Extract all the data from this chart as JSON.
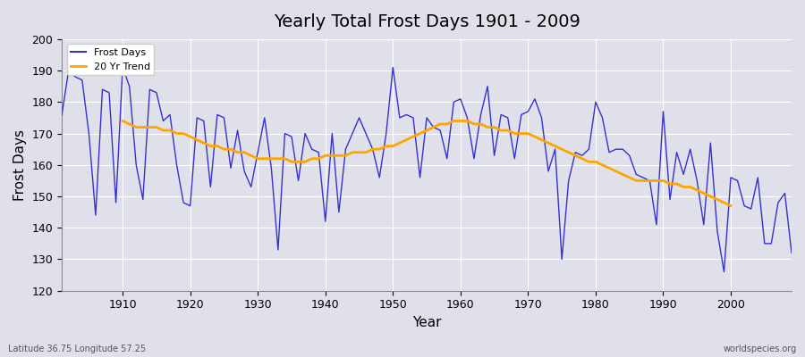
{
  "title": "Yearly Total Frost Days 1901 - 2009",
  "xlabel": "Year",
  "ylabel": "Frost Days",
  "bottom_left_label": "Latitude 36.75 Longitude 57.25",
  "bottom_right_label": "worldspecies.org",
  "xlim": [
    1901,
    2009
  ],
  "ylim": [
    120,
    200
  ],
  "frost_days_color": "#3333cc",
  "trend_color": "#ffa500",
  "background_color": "#e0e0ea",
  "grid_color": "#ffffff",
  "legend_labels": [
    "Frost Days",
    "20 Yr Trend"
  ],
  "years": [
    1901,
    1902,
    1903,
    1904,
    1905,
    1906,
    1907,
    1908,
    1909,
    1910,
    1911,
    1912,
    1913,
    1914,
    1915,
    1916,
    1917,
    1918,
    1919,
    1920,
    1921,
    1922,
    1923,
    1924,
    1925,
    1926,
    1927,
    1928,
    1929,
    1930,
    1931,
    1932,
    1933,
    1934,
    1935,
    1936,
    1937,
    1938,
    1939,
    1940,
    1941,
    1942,
    1943,
    1944,
    1945,
    1946,
    1947,
    1948,
    1949,
    1950,
    1951,
    1952,
    1953,
    1954,
    1955,
    1956,
    1957,
    1958,
    1959,
    1960,
    1961,
    1962,
    1963,
    1964,
    1965,
    1966,
    1967,
    1968,
    1969,
    1970,
    1971,
    1972,
    1973,
    1974,
    1975,
    1976,
    1977,
    1978,
    1979,
    1980,
    1981,
    1982,
    1983,
    1984,
    1985,
    1986,
    1987,
    1988,
    1989,
    1990,
    1991,
    1992,
    1993,
    1994,
    1995,
    1996,
    1997,
    1998,
    1999,
    2000,
    2001,
    2002,
    2003,
    2004,
    2005,
    2006,
    2007,
    2008,
    2009
  ],
  "frost_days": [
    176,
    190,
    188,
    187,
    170,
    144,
    184,
    183,
    148,
    191,
    185,
    160,
    149,
    184,
    183,
    174,
    176,
    160,
    148,
    147,
    175,
    174,
    153,
    176,
    175,
    159,
    171,
    158,
    153,
    164,
    175,
    159,
    133,
    170,
    169,
    155,
    170,
    165,
    164,
    142,
    170,
    145,
    165,
    170,
    175,
    170,
    165,
    156,
    170,
    191,
    175,
    176,
    175,
    156,
    175,
    172,
    171,
    162,
    180,
    181,
    175,
    162,
    176,
    185,
    163,
    176,
    175,
    162,
    176,
    177,
    181,
    175,
    158,
    165,
    130,
    155,
    164,
    163,
    165,
    180,
    175,
    164,
    165,
    165,
    163,
    157,
    156,
    155,
    141,
    177,
    149,
    164,
    157,
    165,
    155,
    141,
    167,
    139,
    126,
    156,
    155,
    147,
    146,
    156,
    135,
    135,
    148,
    151,
    132
  ],
  "trend_years": [
    1910,
    1911,
    1912,
    1913,
    1914,
    1915,
    1916,
    1917,
    1918,
    1919,
    1920,
    1921,
    1922,
    1923,
    1924,
    1925,
    1926,
    1927,
    1928,
    1929,
    1930,
    1931,
    1932,
    1933,
    1934,
    1935,
    1936,
    1937,
    1938,
    1939,
    1940,
    1941,
    1942,
    1943,
    1944,
    1945,
    1946,
    1947,
    1948,
    1949,
    1950,
    1951,
    1952,
    1953,
    1954,
    1955,
    1956,
    1957,
    1958,
    1959,
    1960,
    1961,
    1962,
    1963,
    1964,
    1965,
    1966,
    1967,
    1968,
    1969,
    1970,
    1971,
    1972,
    1973,
    1974,
    1975,
    1976,
    1977,
    1978,
    1979,
    1980,
    1981,
    1982,
    1983,
    1984,
    1985,
    1986,
    1987,
    1988,
    1989,
    1990,
    1991,
    1992,
    1993,
    1994,
    1995,
    1996,
    1997,
    1998,
    1999,
    2000
  ],
  "trend_values": [
    174,
    173,
    172,
    172,
    172,
    172,
    171,
    171,
    170,
    170,
    169,
    168,
    167,
    166,
    166,
    165,
    165,
    164,
    164,
    163,
    162,
    162,
    162,
    162,
    162,
    161,
    161,
    161,
    162,
    162,
    163,
    163,
    163,
    163,
    164,
    164,
    164,
    165,
    165,
    166,
    166,
    167,
    168,
    169,
    170,
    171,
    172,
    173,
    173,
    174,
    174,
    174,
    173,
    173,
    172,
    172,
    171,
    171,
    170,
    170,
    170,
    169,
    168,
    167,
    166,
    165,
    164,
    163,
    162,
    161,
    161,
    160,
    159,
    158,
    157,
    156,
    155,
    155,
    155,
    155,
    155,
    154,
    154,
    153,
    153,
    152,
    151,
    150,
    149,
    148,
    147
  ]
}
